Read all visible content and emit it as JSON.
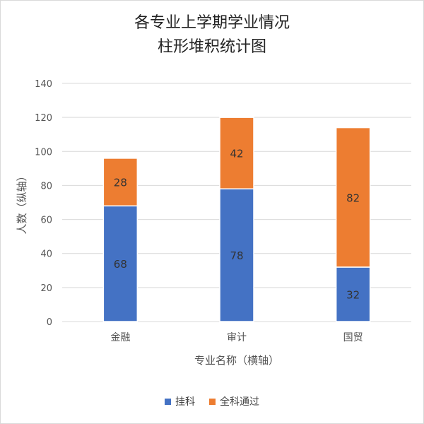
{
  "chart_data": {
    "type": "bar",
    "stacked": true,
    "title_lines": [
      "各专业上学期学业情况",
      "柱形堆积统计图"
    ],
    "xlabel": "专业名称（横轴）",
    "ylabel": "人数（纵轴）",
    "ylim": [
      0,
      140
    ],
    "yticks": [
      0,
      20,
      40,
      60,
      80,
      100,
      120,
      140
    ],
    "categories": [
      "金融",
      "审计",
      "国贸"
    ],
    "series": [
      {
        "name": "挂科",
        "values": [
          68,
          78,
          32
        ],
        "color": "#4472C4"
      },
      {
        "name": "全科通过",
        "values": [
          28,
          42,
          82
        ],
        "color": "#ED7D31"
      }
    ],
    "grid": true,
    "legend_position": "bottom"
  }
}
